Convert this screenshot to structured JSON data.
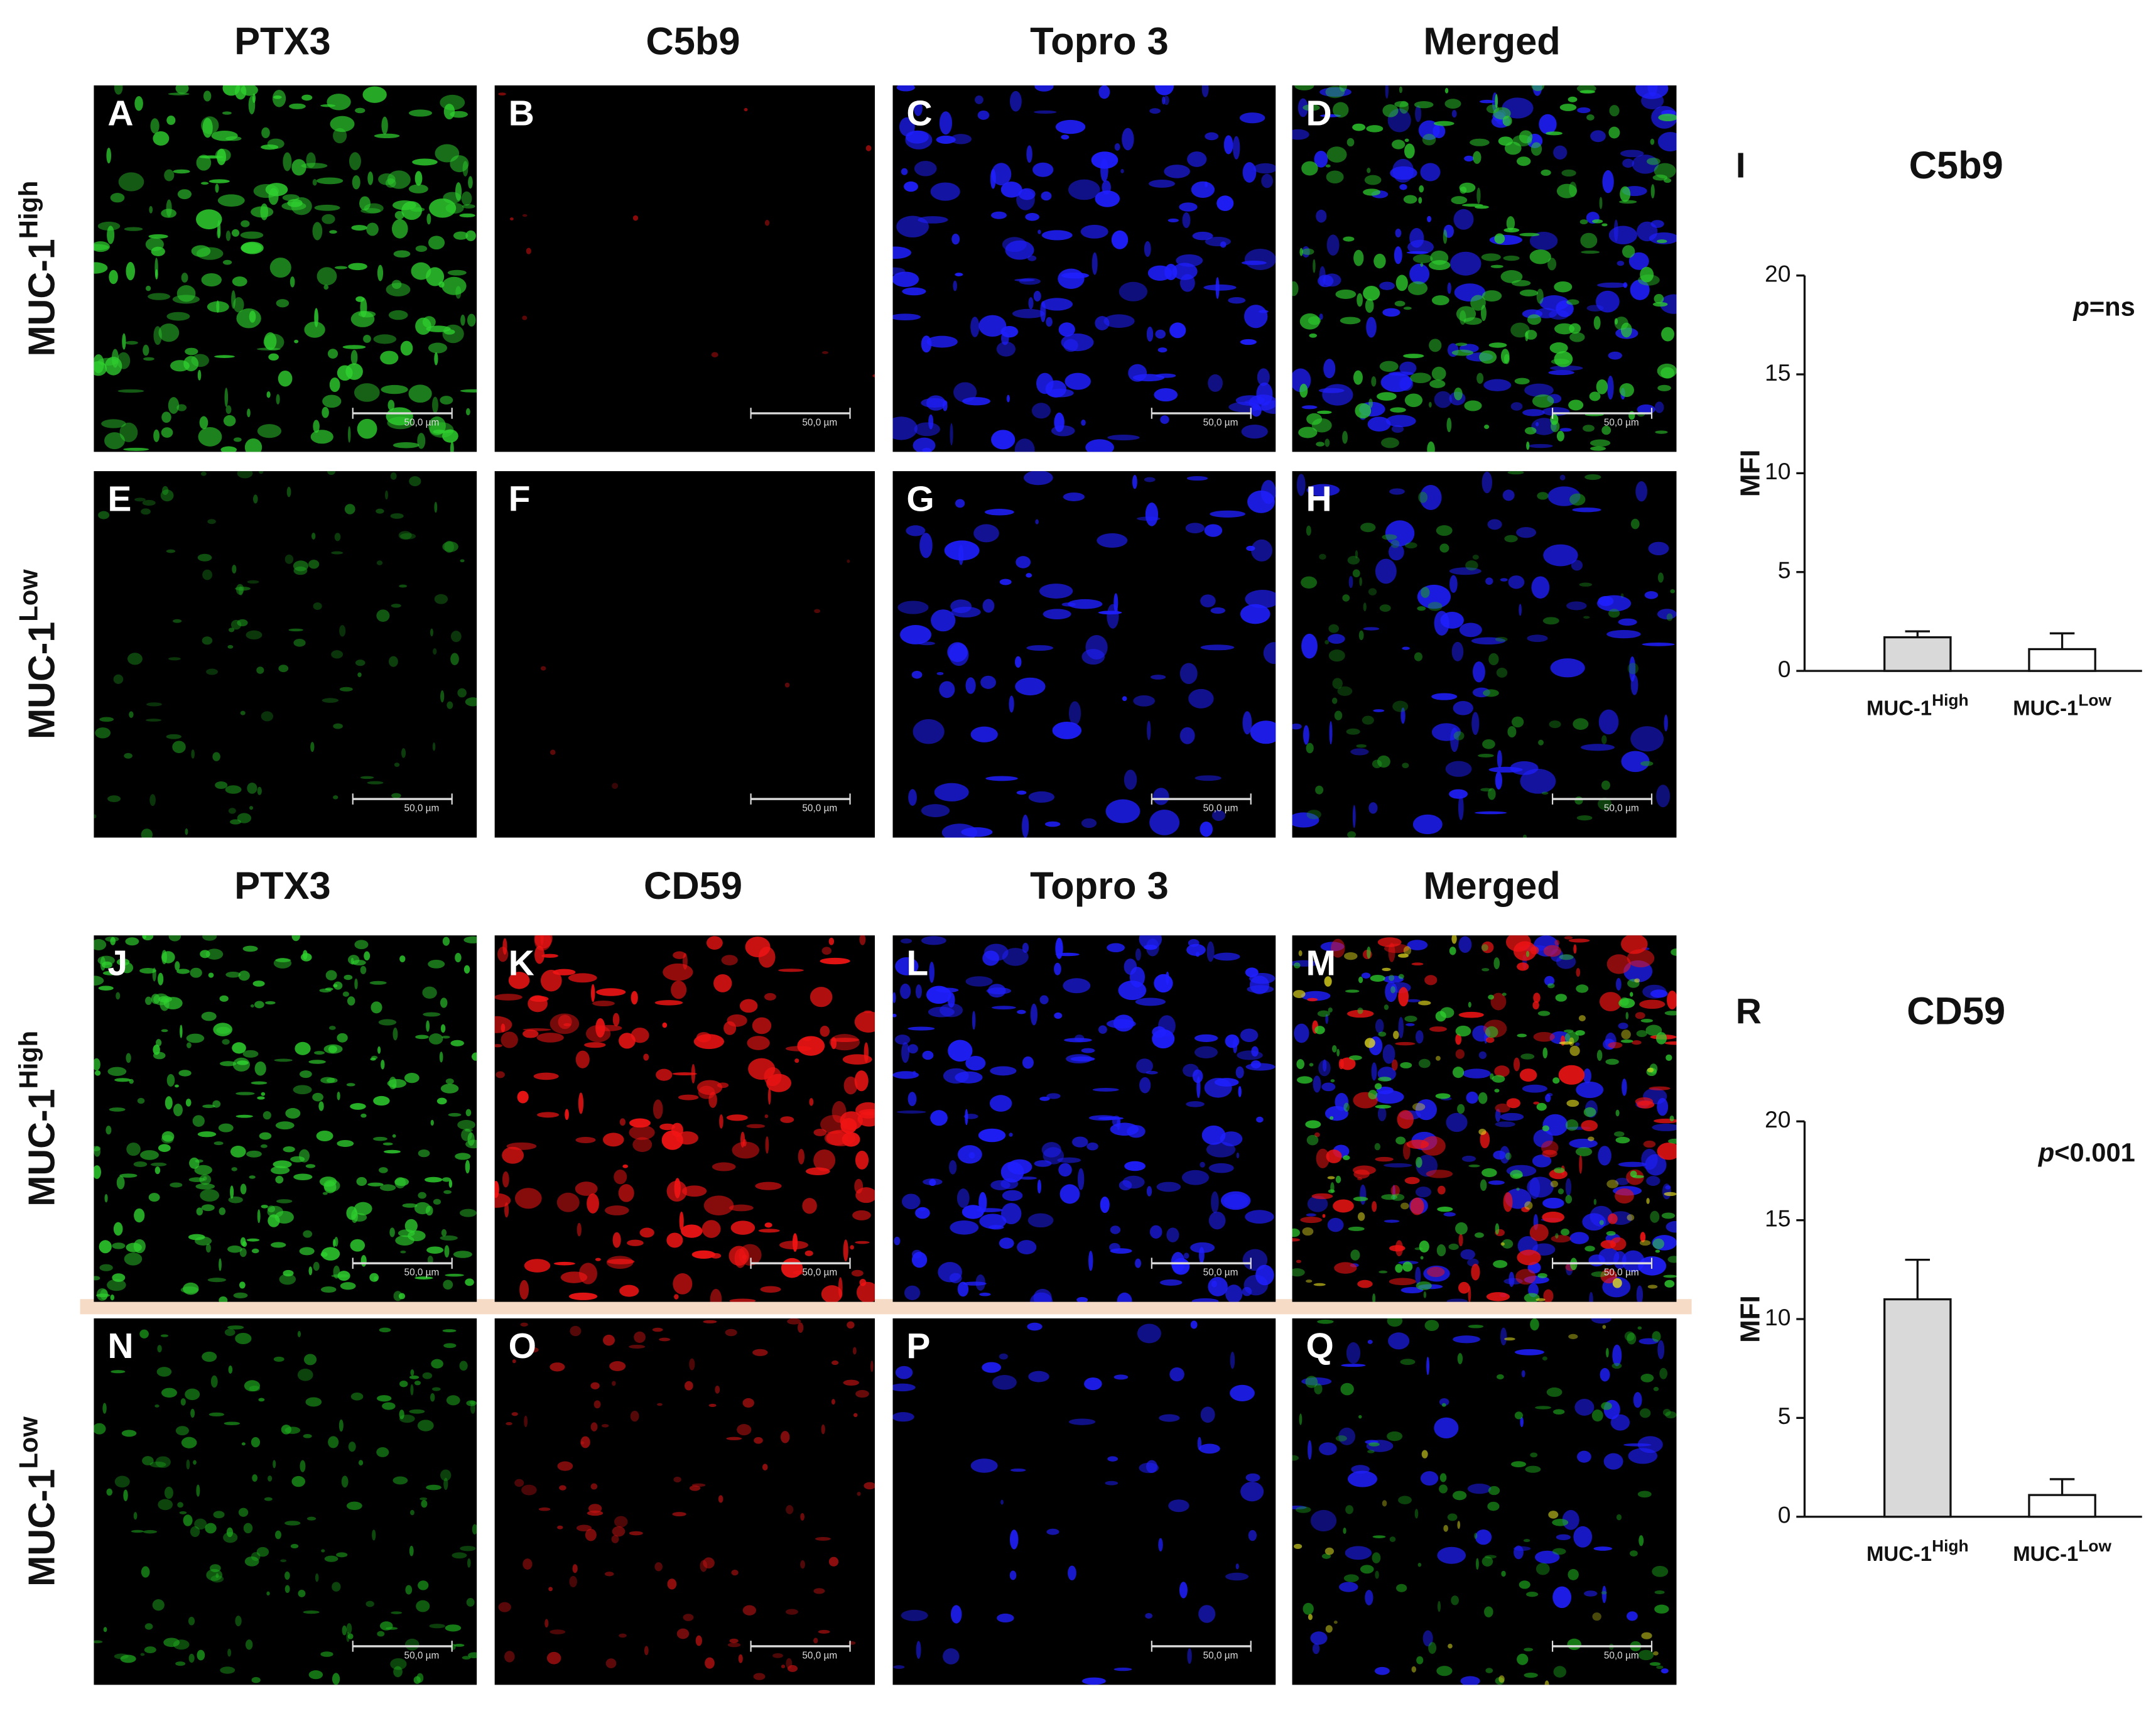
{
  "figure": {
    "blocks": [
      {
        "headers": [
          "PTX3",
          "C5b9",
          "Topro 3",
          "Merged"
        ],
        "rows": [
          {
            "label": [
              "MUC-1",
              "High"
            ],
            "panels": [
              "A",
              "B",
              "C",
              "D"
            ]
          },
          {
            "label": [
              "MUC-1",
              "Low"
            ],
            "panels": [
              "E",
              "F",
              "G",
              "H"
            ]
          }
        ]
      },
      {
        "headers": [
          "PTX3",
          "CD59",
          "Topro 3",
          "Merged"
        ],
        "rows": [
          {
            "label": [
              "MUC-1",
              "High"
            ],
            "panels": [
              "J",
              "K",
              "L",
              "M"
            ]
          },
          {
            "label": [
              "MUC-1",
              "Low"
            ],
            "panels": [
              "N",
              "O",
              "P",
              "Q"
            ]
          }
        ]
      }
    ],
    "scale_bar": "50,0 µm"
  },
  "chart_data": [
    {
      "type": "bar",
      "panel_label": "I",
      "title": "C5b9",
      "y_label": "MFI",
      "annotation": [
        "p",
        "=ns"
      ],
      "categories": [
        [
          "MUC-1",
          "High"
        ],
        [
          "MUC-1",
          "Low"
        ]
      ],
      "values": [
        1.7,
        1.1
      ],
      "errors": [
        0.3,
        0.8
      ],
      "colors": [
        "#d9d9d9",
        "#ffffff"
      ],
      "ylim": [
        0,
        20
      ],
      "yticks": [
        0,
        5,
        10,
        15,
        20
      ]
    },
    {
      "type": "bar",
      "panel_label": "R",
      "title": "CD59",
      "y_label": "MFI",
      "annotation": [
        "p",
        "<0.001"
      ],
      "categories": [
        [
          "MUC-1",
          "High"
        ],
        [
          "MUC-1",
          "Low"
        ]
      ],
      "values": [
        11,
        1.1
      ],
      "errors": [
        2,
        0.8
      ],
      "colors": [
        "#d9d9d9",
        "#ffffff"
      ],
      "ylim": [
        0,
        20
      ],
      "yticks": [
        0,
        5,
        10,
        15,
        20
      ]
    }
  ]
}
